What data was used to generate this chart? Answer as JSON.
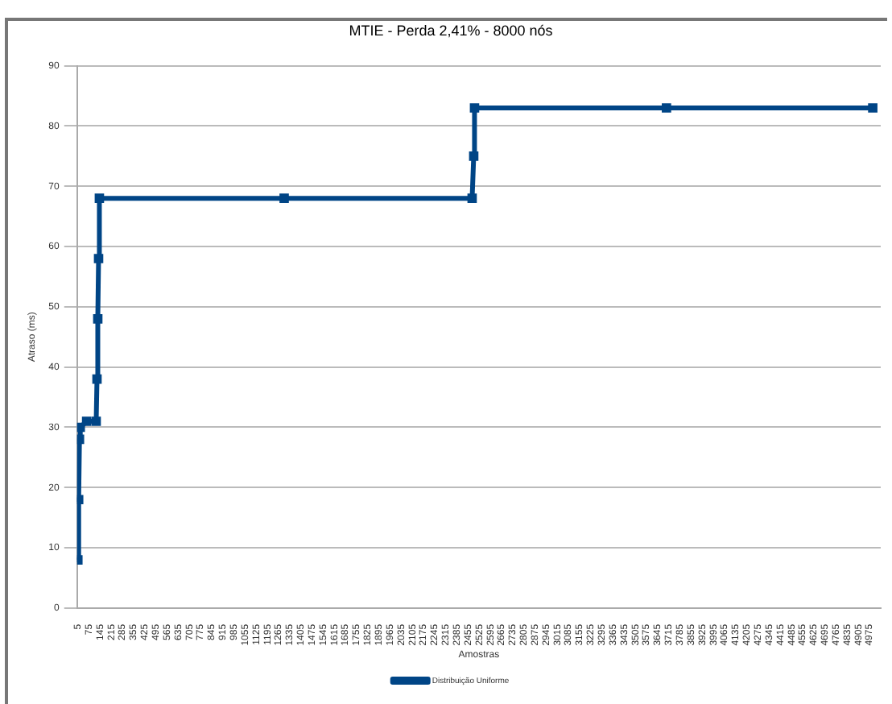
{
  "chart_data": {
    "type": "line",
    "title": "MTIE - Perda 2,41% - 8000 nós",
    "xlabel": "Amostras",
    "ylabel": "Atraso (ms)",
    "series": [
      {
        "name": "Distribuição Uniforme",
        "color": "#004586",
        "x": [
          5,
          10,
          15,
          20,
          60,
          120,
          125,
          130,
          135,
          140,
          1300,
          2480,
          2490,
          2495,
          3700,
          4995
        ],
        "values": [
          8,
          18,
          28,
          30,
          31,
          31,
          38,
          48,
          58,
          68,
          68,
          68,
          75,
          83,
          83,
          83
        ]
      }
    ],
    "xlim": [
      0,
      5045
    ],
    "xticks": [
      5,
      75,
      145,
      215,
      285,
      355,
      425,
      495,
      565,
      635,
      705,
      775,
      845,
      915,
      985,
      1055,
      1125,
      1195,
      1265,
      1335,
      1405,
      1475,
      1545,
      1615,
      1685,
      1755,
      1825,
      1895,
      1965,
      2035,
      2105,
      2175,
      2245,
      2315,
      2385,
      2455,
      2525,
      2595,
      2665,
      2735,
      2805,
      2875,
      2945,
      3015,
      3085,
      3155,
      3225,
      3295,
      3365,
      3435,
      3505,
      3575,
      3645,
      3715,
      3785,
      3855,
      3925,
      3995,
      4065,
      4135,
      4205,
      4275,
      4345,
      4415,
      4485,
      4555,
      4625,
      4695,
      4765,
      4835,
      4905,
      4975
    ],
    "ylim": [
      0,
      90
    ],
    "yticks": [
      0,
      10,
      20,
      30,
      40,
      50,
      60,
      70,
      80,
      90
    ],
    "grid": "y",
    "legend": "bottom",
    "marker": "square",
    "line_style": "solid"
  }
}
